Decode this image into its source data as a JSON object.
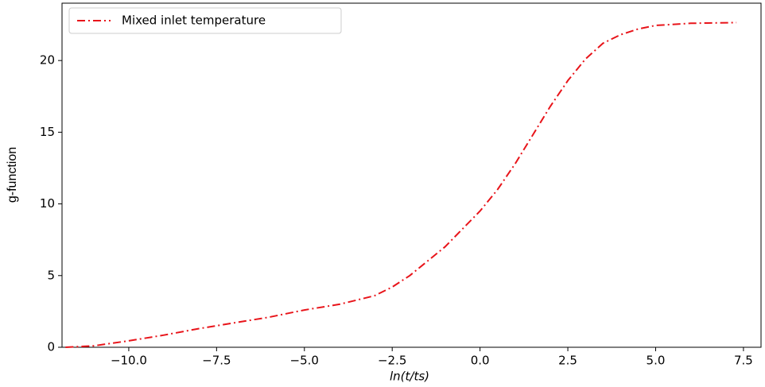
{
  "chart_data": {
    "type": "line",
    "xlabel": "ln(t/ts)",
    "ylabel": "g-function",
    "x": [
      -11.8,
      -11,
      -10,
      -9,
      -8,
      -7,
      -6,
      -5,
      -4,
      -3,
      -2.5,
      -2,
      -1,
      0,
      0.5,
      1,
      1.5,
      2,
      2.5,
      3,
      3.5,
      4,
      4.5,
      5,
      6,
      7.3
    ],
    "series": [
      {
        "name": "Mixed inlet temperature",
        "color": "#e8141a",
        "dash": "dash-dot",
        "values": [
          0,
          0.1,
          0.45,
          0.85,
          1.3,
          1.7,
          2.1,
          2.6,
          3.0,
          3.6,
          4.2,
          5.0,
          7.0,
          9.5,
          11.0,
          12.8,
          14.8,
          16.8,
          18.6,
          20.1,
          21.2,
          21.8,
          22.2,
          22.45,
          22.6,
          22.65
        ]
      }
    ],
    "xlim": [
      -11.9,
      8.0
    ],
    "ylim": [
      0,
      24
    ],
    "xticks": [
      {
        "value": -10,
        "label": "−10.0"
      },
      {
        "value": -7.5,
        "label": "−7.5"
      },
      {
        "value": -5,
        "label": "−5.0"
      },
      {
        "value": -2.5,
        "label": "−2.5"
      },
      {
        "value": 0,
        "label": "0.0"
      },
      2.5,
      {
        "value": 5,
        "label": "5.0"
      },
      7.5
    ],
    "yticks": [
      0,
      5,
      10,
      15,
      20
    ],
    "legend": "upper left",
    "grid": false
  }
}
